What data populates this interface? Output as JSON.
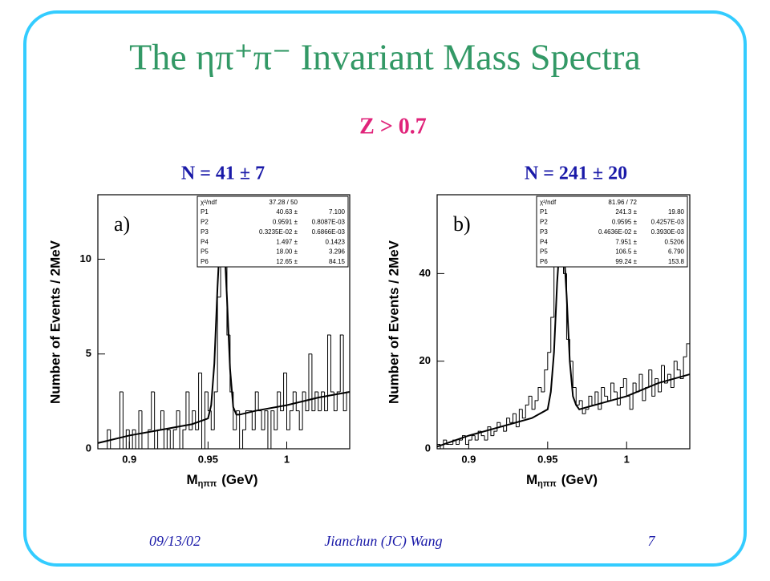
{
  "slide": {
    "title": "The ηπ⁺π⁻ Invariant Mass Spectra",
    "cut": "Z > 0.7",
    "footer": {
      "date": "09/13/02",
      "author": "Jianchun (JC) Wang",
      "page": "7"
    }
  },
  "chart_data": [
    {
      "type": "histogram",
      "label": "N = 41 ± 7",
      "panel": "a)",
      "color": "#000000",
      "bins": [
        0.88,
        0.882,
        0.884,
        0.886,
        0.888,
        0.89,
        0.892,
        0.894,
        0.896,
        0.898,
        0.9,
        0.902,
        0.904,
        0.906,
        0.908,
        0.91,
        0.912,
        0.914,
        0.916,
        0.918,
        0.92,
        0.922,
        0.924,
        0.926,
        0.928,
        0.93,
        0.932,
        0.934,
        0.936,
        0.938,
        0.94,
        0.942,
        0.944,
        0.946,
        0.948,
        0.95,
        0.952,
        0.954,
        0.956,
        0.958,
        0.96,
        0.962,
        0.964,
        0.966,
        0.968,
        0.97,
        0.972,
        0.974,
        0.976,
        0.978,
        0.98,
        0.982,
        0.984,
        0.986,
        0.988,
        0.99,
        0.992,
        0.994,
        0.996,
        0.998,
        1.0,
        1.002,
        1.004,
        1.006,
        1.008,
        1.01,
        1.012,
        1.014,
        1.016,
        1.018,
        1.02,
        1.022,
        1.024,
        1.026,
        1.028,
        1.03,
        1.032,
        1.034,
        1.036,
        1.038,
        1.04
      ],
      "values": [
        0,
        0,
        0,
        1,
        0,
        0,
        0,
        3,
        0,
        1,
        0,
        1,
        0,
        2,
        0,
        0,
        1,
        3,
        0,
        1,
        2,
        0,
        1,
        0,
        1,
        2,
        0,
        1,
        3,
        1,
        2,
        1,
        4,
        0,
        3,
        2,
        1,
        3,
        8,
        12,
        11,
        6,
        3,
        1,
        2,
        0,
        1,
        2,
        2,
        1,
        3,
        2,
        1,
        2,
        0,
        2,
        1,
        3,
        2,
        4,
        1,
        2,
        3,
        2,
        1,
        3,
        2,
        5,
        2,
        3,
        2,
        3,
        2,
        6,
        3,
        2,
        3,
        6,
        2,
        3
      ],
      "fit": {
        "x": [
          0.88,
          0.9,
          0.92,
          0.94,
          0.95,
          0.952,
          0.954,
          0.956,
          0.958,
          0.959,
          0.96,
          0.962,
          0.964,
          0.966,
          0.968,
          0.97,
          0.98,
          1.0,
          1.02,
          1.04
        ],
        "values": [
          0.3,
          0.7,
          1.0,
          1.3,
          1.6,
          2.3,
          4.5,
          8.5,
          11.8,
          12.1,
          11.5,
          8.0,
          4.2,
          2.2,
          1.8,
          1.8,
          2.0,
          2.3,
          2.7,
          3.0
        ]
      },
      "xlim": [
        0.88,
        1.04
      ],
      "xticks": [
        0.9,
        0.95,
        1
      ],
      "ylim": [
        0,
        13.4
      ],
      "yticks": [
        0,
        5,
        10
      ],
      "x_label": "M",
      "x_label_sub": "ηππ",
      "x_label_unit": "(GeV)",
      "y_label": "Number of Events / 2MeV",
      "stats": {
        "chi2_label": "χ²/ndf",
        "chi2_value": "37.28  /  50",
        "params": [
          {
            "name": "P1",
            "value": "40.63 ±",
            "error": "7.100"
          },
          {
            "name": "P2",
            "value": "0.9591 ±",
            "error": "0.8087E-03"
          },
          {
            "name": "P3",
            "value": "0.3235E-02 ±",
            "error": "0.6866E-03"
          },
          {
            "name": "P4",
            "value": "1.497 ±",
            "error": "0.1423"
          },
          {
            "name": "P5",
            "value": "18.00 ±",
            "error": "3.296"
          },
          {
            "name": "P6",
            "value": "12.65 ±",
            "error": "84.15"
          }
        ]
      }
    },
    {
      "type": "histogram",
      "label": "N = 241 ± 20",
      "panel": "b)",
      "color": "#000000",
      "bins": [
        0.88,
        0.882,
        0.884,
        0.886,
        0.888,
        0.89,
        0.892,
        0.894,
        0.896,
        0.898,
        0.9,
        0.902,
        0.904,
        0.906,
        0.908,
        0.91,
        0.912,
        0.914,
        0.916,
        0.918,
        0.92,
        0.922,
        0.924,
        0.926,
        0.928,
        0.93,
        0.932,
        0.934,
        0.936,
        0.938,
        0.94,
        0.942,
        0.944,
        0.946,
        0.948,
        0.95,
        0.952,
        0.954,
        0.956,
        0.958,
        0.96,
        0.962,
        0.964,
        0.966,
        0.968,
        0.97,
        0.972,
        0.974,
        0.976,
        0.978,
        0.98,
        0.982,
        0.984,
        0.986,
        0.988,
        0.99,
        0.992,
        0.994,
        0.996,
        0.998,
        1.0,
        1.002,
        1.004,
        1.006,
        1.008,
        1.01,
        1.012,
        1.014,
        1.016,
        1.018,
        1.02,
        1.022,
        1.024,
        1.026,
        1.028,
        1.03,
        1.032,
        1.034,
        1.036,
        1.038,
        1.04
      ],
      "values": [
        1,
        0,
        2,
        1,
        1,
        2,
        1,
        2,
        3,
        1,
        2,
        3,
        2,
        4,
        3,
        2,
        5,
        3,
        4,
        6,
        5,
        4,
        7,
        6,
        8,
        5,
        9,
        7,
        10,
        12,
        9,
        11,
        14,
        13,
        18,
        22,
        30,
        44,
        52,
        52,
        40,
        25,
        20,
        14,
        10,
        11,
        8,
        9,
        12,
        10,
        13,
        9,
        14,
        12,
        11,
        15,
        13,
        10,
        14,
        16,
        12,
        9,
        15,
        13,
        17,
        11,
        14,
        18,
        12,
        16,
        13,
        19,
        15,
        17,
        14,
        20,
        18,
        16,
        21,
        24
      ],
      "fit": {
        "x": [
          0.88,
          0.9,
          0.92,
          0.94,
          0.95,
          0.952,
          0.954,
          0.956,
          0.958,
          0.959,
          0.96,
          0.962,
          0.964,
          0.966,
          0.968,
          0.97,
          0.98,
          1.0,
          1.02,
          1.04
        ],
        "values": [
          0.5,
          3,
          5,
          7,
          9,
          13,
          22,
          38,
          49,
          50,
          47,
          35,
          20,
          12,
          10,
          9,
          10,
          12,
          15,
          17
        ]
      },
      "xlim": [
        0.88,
        1.04
      ],
      "xticks": [
        0.9,
        0.95,
        1
      ],
      "ylim": [
        0,
        58
      ],
      "yticks": [
        0,
        20,
        40
      ],
      "x_label": "M",
      "x_label_sub": "ηππ",
      "x_label_unit": "(GeV)",
      "y_label": "Number of Events / 2MeV",
      "stats": {
        "chi2_label": "χ²/ndf",
        "chi2_value": "81.96  /  72",
        "params": [
          {
            "name": "P1",
            "value": "241.3 ±",
            "error": "19.80"
          },
          {
            "name": "P2",
            "value": "0.9595 ±",
            "error": "0.4257E-03"
          },
          {
            "name": "P3",
            "value": "0.4636E-02 ±",
            "error": "0.3930E-03"
          },
          {
            "name": "P4",
            "value": "7.951 ±",
            "error": "0.5206"
          },
          {
            "name": "P5",
            "value": "106.5 ±",
            "error": "6.790"
          },
          {
            "name": "P6",
            "value": "99.24 ±",
            "error": "153.8"
          }
        ]
      }
    }
  ]
}
